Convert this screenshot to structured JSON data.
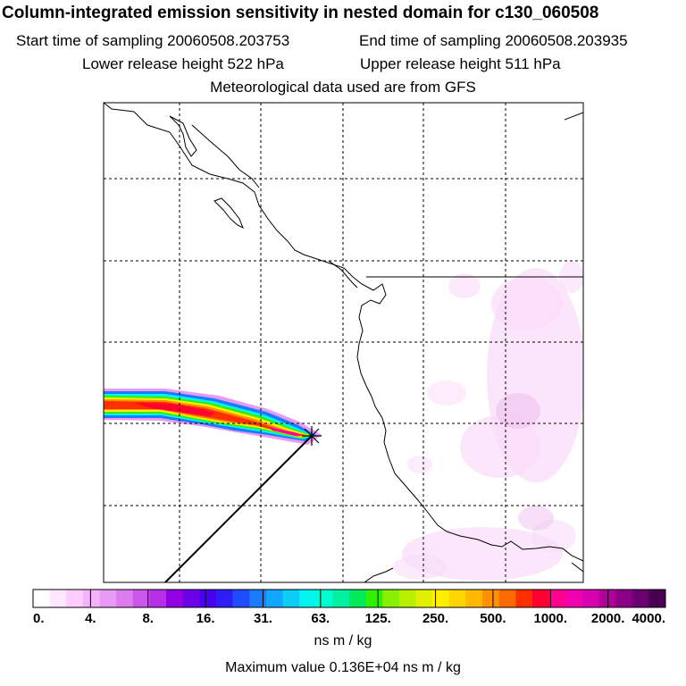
{
  "header": {
    "title": "Column-integrated emission sensitivity in nested domain for c130_060508",
    "start_label": "Start time of sampling 20060508.203753",
    "end_label": "End time of sampling 20060508.203935",
    "lower_label": "Lower release height  522 hPa",
    "upper_label": "Upper release height  511 hPa",
    "met_label": "Meteorological data used are from GFS"
  },
  "colorbar": {
    "tick_labels": [
      "0.",
      "4.",
      "8.",
      "16.",
      "31.",
      "63.",
      "125.",
      "250.",
      "500.",
      "1000.",
      "2000.",
      "4000."
    ],
    "unit": "ns m / kg",
    "colors": [
      "#ffffff",
      "#ffe6ff",
      "#ffccff",
      "#f5b3fa",
      "#e99af5",
      "#dc7cf0",
      "#cc55ee",
      "#b52ee8",
      "#9000e0",
      "#6c00e8",
      "#4a00f0",
      "#2e1ef5",
      "#1e4cff",
      "#1a7bff",
      "#11a6ff",
      "#0dcdf5",
      "#00f5f0",
      "#00ffd0",
      "#00f2a0",
      "#00ea5a",
      "#30f000",
      "#88f000",
      "#b8f000",
      "#e0f000",
      "#ffee00",
      "#ffd500",
      "#ffb800",
      "#ff9000",
      "#ff6a00",
      "#ff3000",
      "#ff0030",
      "#ff0090",
      "#f200b0",
      "#d800b0",
      "#b0009a",
      "#8a0086",
      "#6a0070",
      "#4a0050"
    ]
  },
  "footer": {
    "max_value_label": "Maximum value  0.136E+04 ns m / kg"
  },
  "colors": {
    "coast": "#000000",
    "grid": "#000000",
    "weak_plume": "#f6d6f6"
  }
}
